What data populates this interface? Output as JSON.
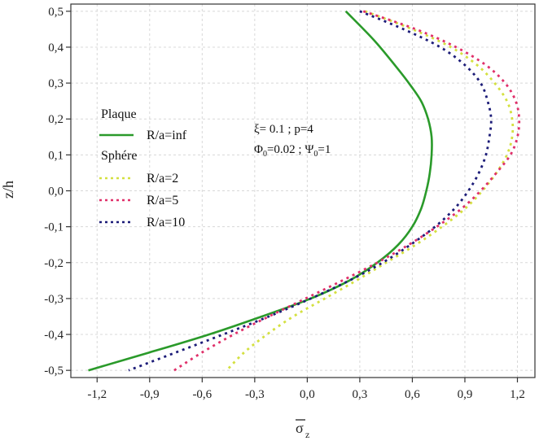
{
  "chart_data": {
    "type": "line",
    "xlabel": "σ",
    "xlabel_sub": "z",
    "ylabel": "z/h",
    "xlim": [
      -1.35,
      1.3
    ],
    "ylim": [
      -0.52,
      0.52
    ],
    "grid": true,
    "x_ticks": [
      {
        "v": -1.2,
        "label": "-1,2"
      },
      {
        "v": -0.9,
        "label": "-0,9"
      },
      {
        "v": -0.6,
        "label": "-0,6"
      },
      {
        "v": -0.3,
        "label": "-0,3"
      },
      {
        "v": 0.0,
        "label": "0,0"
      },
      {
        "v": 0.3,
        "label": "0,3"
      },
      {
        "v": 0.6,
        "label": "0,6"
      },
      {
        "v": 0.9,
        "label": "0,9"
      },
      {
        "v": 1.2,
        "label": "1,2"
      }
    ],
    "y_ticks": [
      {
        "v": 0.5,
        "label": "0,5"
      },
      {
        "v": 0.4,
        "label": "0,4"
      },
      {
        "v": 0.3,
        "label": "0,3"
      },
      {
        "v": 0.2,
        "label": "0,2"
      },
      {
        "v": 0.1,
        "label": "0,1"
      },
      {
        "v": 0.0,
        "label": "0,0"
      },
      {
        "v": -0.1,
        "label": "-0,1"
      },
      {
        "v": -0.2,
        "label": "-0,2"
      },
      {
        "v": -0.3,
        "label": "-0,3"
      },
      {
        "v": -0.4,
        "label": "-0,4"
      },
      {
        "v": -0.5,
        "label": "-0,5"
      }
    ],
    "legend": {
      "placement": "left-middle",
      "groups": [
        {
          "title": "Plaque",
          "entries": [
            0
          ]
        },
        {
          "title": "Sphére",
          "entries": [
            1,
            2,
            3
          ]
        }
      ]
    },
    "annotations": {
      "line1": "ξ= 0.1 ; p=4",
      "line2_a": "Φ",
      "line2_a_sub": "0",
      "line2_b": "=0.02 ; Ψ",
      "line2_b_sub": "0",
      "line2_c": "=1"
    },
    "series": [
      {
        "name": "R/a=inf",
        "color": "#2a9a2a",
        "style": "solid",
        "points": [
          [
            0.22,
            0.5
          ],
          [
            0.38,
            0.42
          ],
          [
            0.5,
            0.35
          ],
          [
            0.58,
            0.3
          ],
          [
            0.65,
            0.25
          ],
          [
            0.69,
            0.2
          ],
          [
            0.71,
            0.15
          ],
          [
            0.71,
            0.1
          ],
          [
            0.7,
            0.05
          ],
          [
            0.68,
            0.0
          ],
          [
            0.65,
            -0.05
          ],
          [
            0.6,
            -0.1
          ],
          [
            0.52,
            -0.15
          ],
          [
            0.4,
            -0.2
          ],
          [
            0.24,
            -0.25
          ],
          [
            0.02,
            -0.3
          ],
          [
            -0.26,
            -0.35
          ],
          [
            -0.56,
            -0.4
          ],
          [
            -0.9,
            -0.45
          ],
          [
            -1.25,
            -0.5
          ]
        ]
      },
      {
        "name": "R/a=2",
        "color": "#d4e040",
        "style": "dotted",
        "points": [
          [
            0.33,
            0.5
          ],
          [
            0.6,
            0.45
          ],
          [
            0.82,
            0.4
          ],
          [
            0.97,
            0.35
          ],
          [
            1.07,
            0.3
          ],
          [
            1.14,
            0.25
          ],
          [
            1.17,
            0.2
          ],
          [
            1.17,
            0.15
          ],
          [
            1.14,
            0.1
          ],
          [
            1.08,
            0.05
          ],
          [
            1.0,
            0.0
          ],
          [
            0.9,
            -0.05
          ],
          [
            0.77,
            -0.1
          ],
          [
            0.62,
            -0.15
          ],
          [
            0.45,
            -0.2
          ],
          [
            0.28,
            -0.25
          ],
          [
            0.1,
            -0.3
          ],
          [
            -0.08,
            -0.35
          ],
          [
            -0.23,
            -0.4
          ],
          [
            -0.36,
            -0.45
          ],
          [
            -0.46,
            -0.5
          ]
        ]
      },
      {
        "name": "R/a=5",
        "color": "#e0306a",
        "style": "dotted",
        "points": [
          [
            0.32,
            0.5
          ],
          [
            0.62,
            0.45
          ],
          [
            0.85,
            0.4
          ],
          [
            1.02,
            0.35
          ],
          [
            1.13,
            0.3
          ],
          [
            1.19,
            0.25
          ],
          [
            1.21,
            0.2
          ],
          [
            1.2,
            0.15
          ],
          [
            1.16,
            0.1
          ],
          [
            1.08,
            0.05
          ],
          [
            0.99,
            0.0
          ],
          [
            0.88,
            -0.05
          ],
          [
            0.74,
            -0.1
          ],
          [
            0.58,
            -0.15
          ],
          [
            0.4,
            -0.2
          ],
          [
            0.2,
            -0.25
          ],
          [
            -0.01,
            -0.3
          ],
          [
            -0.22,
            -0.35
          ],
          [
            -0.42,
            -0.4
          ],
          [
            -0.6,
            -0.45
          ],
          [
            -0.76,
            -0.5
          ]
        ]
      },
      {
        "name": "R/a=10",
        "color": "#1c1c78",
        "style": "dotted",
        "points": [
          [
            0.3,
            0.5
          ],
          [
            0.55,
            0.45
          ],
          [
            0.76,
            0.4
          ],
          [
            0.9,
            0.35
          ],
          [
            0.99,
            0.3
          ],
          [
            1.03,
            0.25
          ],
          [
            1.05,
            0.2
          ],
          [
            1.04,
            0.15
          ],
          [
            1.02,
            0.1
          ],
          [
            0.98,
            0.05
          ],
          [
            0.92,
            0.0
          ],
          [
            0.84,
            -0.05
          ],
          [
            0.73,
            -0.1
          ],
          [
            0.59,
            -0.15
          ],
          [
            0.43,
            -0.2
          ],
          [
            0.24,
            -0.25
          ],
          [
            0.02,
            -0.3
          ],
          [
            -0.22,
            -0.35
          ],
          [
            -0.48,
            -0.4
          ],
          [
            -0.75,
            -0.45
          ],
          [
            -1.02,
            -0.5
          ]
        ]
      }
    ]
  }
}
